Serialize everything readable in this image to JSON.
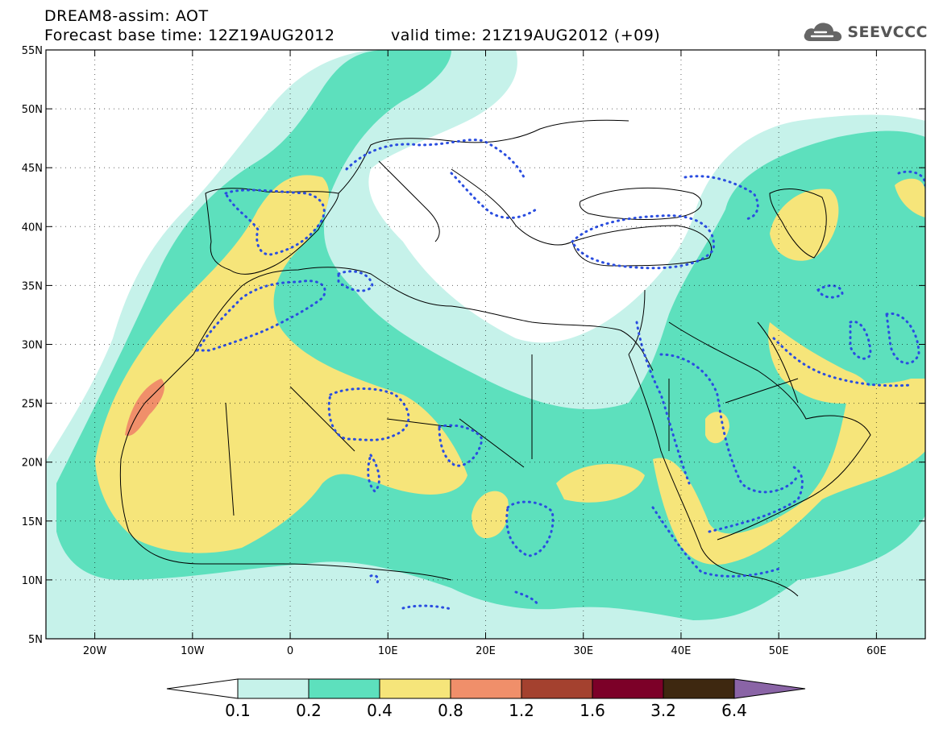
{
  "header": {
    "line1": "DREAM8-assim: AOT",
    "line2": "Forecast base time: 12Z19AUG2012",
    "valid": "valid time: 21Z19AUG2012 (+09)"
  },
  "logo": {
    "text": "SEEVCCC",
    "icon": "cloud-icon"
  },
  "map": {
    "lon_range": [
      -25,
      65
    ],
    "lat_range": [
      5,
      55
    ],
    "lon_ticks": [
      {
        "v": -20,
        "label": "20W"
      },
      {
        "v": -10,
        "label": "10W"
      },
      {
        "v": 0,
        "label": "0"
      },
      {
        "v": 10,
        "label": "10E"
      },
      {
        "v": 20,
        "label": "20E"
      },
      {
        "v": 30,
        "label": "30E"
      },
      {
        "v": 40,
        "label": "40E"
      },
      {
        "v": 50,
        "label": "50E"
      },
      {
        "v": 60,
        "label": "60E"
      }
    ],
    "lat_ticks": [
      {
        "v": 55,
        "label": "55N"
      },
      {
        "v": 50,
        "label": "50N"
      },
      {
        "v": 45,
        "label": "45N"
      },
      {
        "v": 40,
        "label": "40N"
      },
      {
        "v": 35,
        "label": "35N"
      },
      {
        "v": 30,
        "label": "30N"
      },
      {
        "v": 25,
        "label": "25N"
      },
      {
        "v": 20,
        "label": "20N"
      },
      {
        "v": 15,
        "label": "15N"
      },
      {
        "v": 10,
        "label": "10N"
      },
      {
        "v": 5,
        "label": "5N"
      }
    ],
    "grid": true
  },
  "colorbar": {
    "labels": [
      "0.1",
      "0.2",
      "0.4",
      "0.8",
      "1.2",
      "1.6",
      "3.2",
      "6.4"
    ],
    "colors": [
      "#ffffff",
      "#c6f2ea",
      "#5de0bd",
      "#f6e57a",
      "#f08f6a",
      "#a4412f",
      "#7c0028",
      "#3e2810",
      "#8a64a6"
    ]
  },
  "chart_data": {
    "type": "heatmap",
    "variable": "AOT",
    "levels": [
      0.1,
      0.2,
      0.4,
      0.8,
      1.2,
      1.6,
      3.2,
      6.4
    ],
    "max_shown_band": "0.8-1.2 (Western Sahara coast)"
  }
}
